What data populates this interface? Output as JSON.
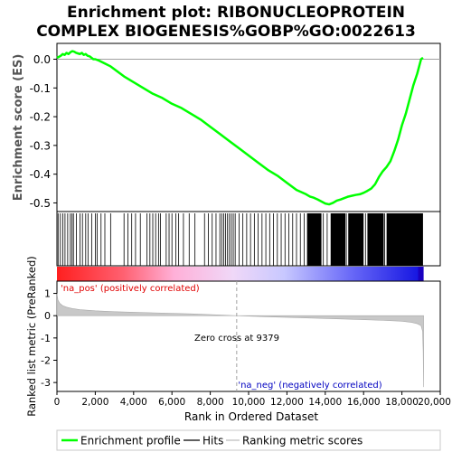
{
  "chart_data": {
    "type": "line",
    "title_lines": [
      "Enrichment plot: RIBONUCLEOPROTEIN",
      "COMPLEX BIOGENESIS%GOBP%GO:0022613"
    ],
    "es_panel": {
      "ylabel": "Enrichment score (ES)",
      "ylim": [
        -0.53,
        0.055
      ],
      "yticks": [
        0.0,
        -0.1,
        -0.2,
        -0.3,
        -0.4,
        -0.5
      ],
      "ytick_labels": [
        "0.0",
        "-0.1",
        "-0.2",
        "-0.3",
        "-0.4",
        "-0.5"
      ],
      "line_color": "#00ff00",
      "curve": {
        "x": [
          0,
          100,
          200,
          300,
          400,
          500,
          600,
          700,
          800,
          900,
          1000,
          1100,
          1200,
          1300,
          1400,
          1500,
          1600,
          1700,
          1800,
          1900,
          2000,
          2200,
          2500,
          2800,
          3000,
          3500,
          4000,
          4500,
          5000,
          5500,
          6000,
          6500,
          7000,
          7500,
          8000,
          8500,
          9000,
          9500,
          10000,
          10500,
          11000,
          11500,
          12000,
          12500,
          13000,
          13200,
          13400,
          13600,
          13800,
          14000,
          14200,
          14400,
          14600,
          14800,
          15000,
          15200,
          15400,
          15600,
          15800,
          16000,
          16200,
          16400,
          16600,
          16800,
          17000,
          17200,
          17400,
          17600,
          17800,
          18000,
          18200,
          18400,
          18600,
          18800,
          19000,
          19100
        ],
        "y": [
          0.005,
          0.008,
          0.012,
          0.018,
          0.015,
          0.022,
          0.018,
          0.024,
          0.028,
          0.026,
          0.022,
          0.02,
          0.018,
          0.022,
          0.015,
          0.018,
          0.012,
          0.01,
          0.005,
          0.0,
          0.0,
          -0.005,
          -0.015,
          -0.025,
          -0.035,
          -0.06,
          -0.08,
          -0.1,
          -0.12,
          -0.135,
          -0.155,
          -0.17,
          -0.19,
          -0.21,
          -0.235,
          -0.26,
          -0.285,
          -0.31,
          -0.335,
          -0.36,
          -0.385,
          -0.405,
          -0.43,
          -0.455,
          -0.47,
          -0.478,
          -0.482,
          -0.488,
          -0.495,
          -0.502,
          -0.505,
          -0.5,
          -0.492,
          -0.488,
          -0.483,
          -0.478,
          -0.475,
          -0.472,
          -0.47,
          -0.465,
          -0.458,
          -0.45,
          -0.435,
          -0.41,
          -0.39,
          -0.375,
          -0.355,
          -0.32,
          -0.28,
          -0.23,
          -0.19,
          -0.14,
          -0.09,
          -0.05,
          0.0,
          0.005
        ]
      }
    },
    "hits_panel": {
      "hit_ranks": [
        60,
        180,
        310,
        420,
        560,
        700,
        790,
        860,
        1010,
        1200,
        1330,
        1500,
        1620,
        1810,
        2000,
        2100,
        2300,
        2500,
        2800,
        3500,
        3700,
        3900,
        4100,
        4350,
        4700,
        4850,
        5000,
        5150,
        5300,
        5400,
        5700,
        5850,
        6000,
        6200,
        6350,
        6600,
        6900,
        7200,
        7700,
        7900,
        8100,
        8300,
        8500,
        8600,
        8700,
        8800,
        8900,
        9000,
        9100,
        9200,
        9300,
        9500,
        9700,
        9900,
        10100,
        10300,
        10500,
        10700,
        10900,
        11100,
        11300,
        11500,
        11700,
        11900,
        12100,
        12300,
        12500,
        12700,
        12900,
        13100,
        13300,
        13500,
        13700,
        13900,
        14100,
        14300,
        14500,
        14700,
        14900,
        15100,
        15300,
        15500,
        15700,
        15900,
        16100,
        16300,
        16500,
        16700,
        16900,
        17100,
        17300,
        17500,
        17700,
        17900,
        18100,
        18300,
        18500,
        18700,
        18900,
        19050
      ],
      "dense_hit_ranges": [
        [
          13050,
          13800
        ],
        [
          14300,
          15050
        ],
        [
          15200,
          16000
        ],
        [
          16200,
          17050
        ],
        [
          17200,
          19100
        ]
      ]
    },
    "gradient_bar": {
      "pos_label": "'na_pos' (positively correlated)",
      "neg_label": "'na_neg' (negatively correlated)",
      "pos_color": "#ff0000",
      "neg_color": "#0000ff"
    },
    "metric_panel": {
      "ylabel": "Ranked list metric (PreRanked)",
      "ylim": [
        -3.4,
        1.55
      ],
      "yticks": [
        1,
        0,
        -1,
        -2,
        -3
      ],
      "ytick_labels": [
        "1",
        "0",
        "-1",
        "-2",
        "-3"
      ],
      "zero_cross_label": "Zero cross at 9379",
      "zero_cross_rank": 9379,
      "fill_color": "#c8c8c8",
      "metric_curve": {
        "x": [
          0,
          50,
          150,
          300,
          500,
          800,
          1200,
          2000,
          3000,
          5000,
          7000,
          9379,
          11000,
          13000,
          15000,
          17000,
          18000,
          18500,
          18800,
          19000,
          19080,
          19110,
          19130
        ],
        "y": [
          1.0,
          0.7,
          0.55,
          0.45,
          0.38,
          0.32,
          0.27,
          0.22,
          0.18,
          0.13,
          0.08,
          0.0,
          -0.05,
          -0.1,
          -0.15,
          -0.21,
          -0.25,
          -0.3,
          -0.36,
          -0.45,
          -0.7,
          -1.6,
          -3.2
        ]
      }
    },
    "x_axis": {
      "xlabel": "Rank in Ordered Dataset",
      "xlim": [
        0,
        20000
      ],
      "xticks": [
        0,
        2000,
        4000,
        6000,
        8000,
        10000,
        12000,
        14000,
        16000,
        18000,
        20000
      ],
      "xtick_labels": [
        "0",
        "2,000",
        "4,000",
        "6,000",
        "8,000",
        "10,000",
        "12,000",
        "14,000",
        "16,000",
        "18,000",
        "20,000"
      ],
      "n_ranks": 19130
    },
    "legend": {
      "placement": "bottom",
      "entries": [
        {
          "label": "Enrichment profile",
          "color": "#00ff00"
        },
        {
          "label": "Hits",
          "color": "#000000"
        },
        {
          "label": "Ranking metric scores",
          "color": "#c0c0c0"
        }
      ]
    }
  }
}
